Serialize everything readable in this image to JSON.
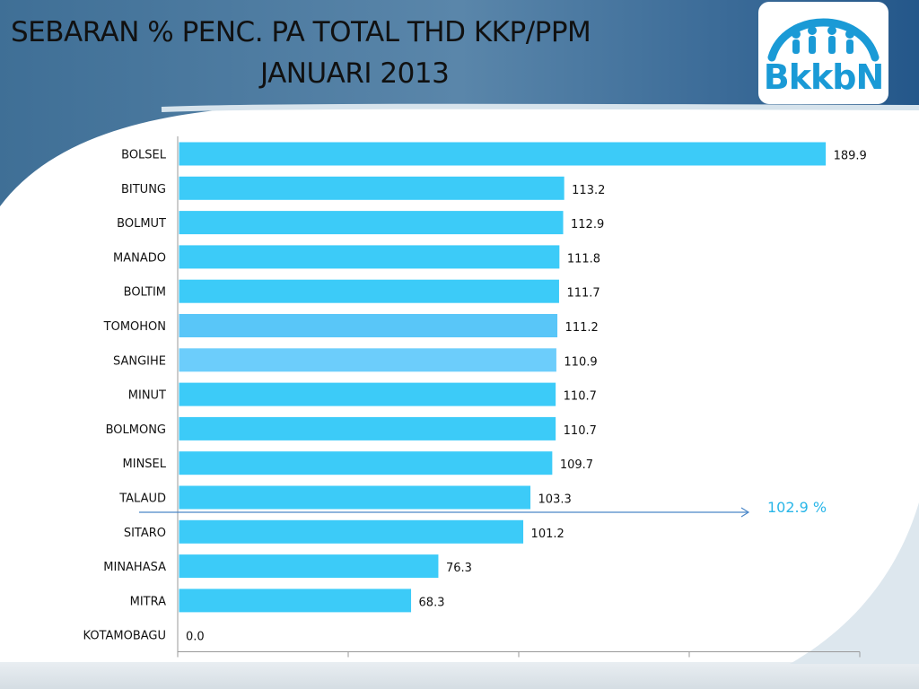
{
  "header": {
    "title_line1": "SEBARAN % PENC. PA TOTAL THD KKP/PPM",
    "title_line2": "JANUARI 2013",
    "logo_text": "BkkbN",
    "logo_color": "#1a9ad6"
  },
  "chart_data": {
    "type": "bar",
    "orientation": "horizontal",
    "title": "SEBARAN % PENC. PA TOTAL THD KKP/PPM JANUARI 2013",
    "categories": [
      "BOLSEL",
      "BITUNG",
      "BOLMUT",
      "MANADO",
      "BOLTIM",
      "TOMOHON",
      "SANGIHE",
      "MINUT",
      "BOLMONG",
      "MINSEL",
      "TALAUD",
      "SITARO",
      "MINAHASA",
      "MITRA",
      "KOTAMOBAGU"
    ],
    "values": [
      189.9,
      113.2,
      112.9,
      111.8,
      111.7,
      111.2,
      110.9,
      110.7,
      110.7,
      109.7,
      103.3,
      101.2,
      76.3,
      68.3,
      0.0
    ],
    "value_labels": [
      "189.9",
      "113.2",
      "112.9",
      "111.8",
      "111.7",
      "111.2",
      "110.9",
      "110.7",
      "110.7",
      "109.7",
      "103.3",
      "101.2",
      "76.3",
      "68.3",
      "0.0"
    ],
    "xlim": [
      0,
      200
    ],
    "bar_color": "#3ccbf8",
    "highlight_colors": {
      "TOMOHON": "#59c6f8",
      "SANGIHE": "#6ccdfb"
    },
    "reference_line": {
      "value": 102.9,
      "label": "102.9 %",
      "color": "#4a86c8"
    },
    "grid": false
  }
}
